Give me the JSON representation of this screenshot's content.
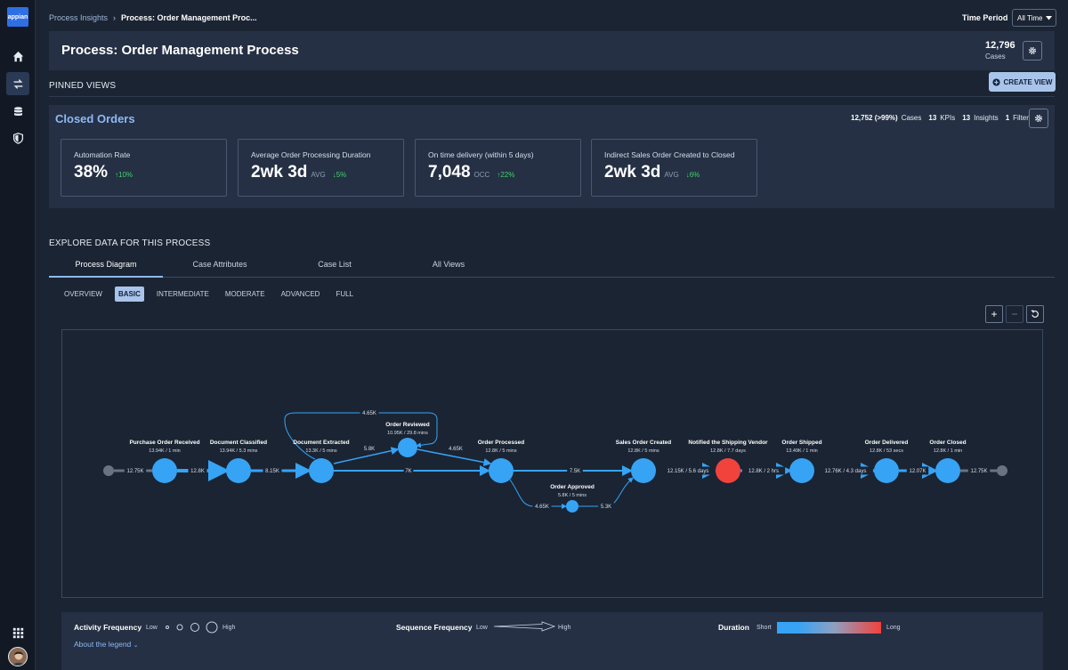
{
  "app": {
    "logo_text": "appian"
  },
  "breadcrumb": {
    "parent": "Process Insights",
    "separator": "›",
    "current": "Process: Order Management Proc..."
  },
  "time_period": {
    "label": "Time Period",
    "value": "All Time"
  },
  "header": {
    "title": "Process: Order Management Process",
    "cases_count": "12,796",
    "cases_label": "Cases"
  },
  "pinned": {
    "title": "PINNED VIEWS",
    "create_label": "CREATE VIEW"
  },
  "closed_orders": {
    "title": "Closed Orders",
    "stats": {
      "cases_value": "12,752 (>99%)",
      "cases_label": "Cases",
      "kpis_value": "13",
      "kpis_label": "KPIs",
      "insights_value": "13",
      "insights_label": "Insights",
      "filters_value": "1",
      "filters_label": "Filters"
    },
    "kpis": [
      {
        "label": "Automation Rate",
        "value": "38%",
        "unit": "",
        "delta": "↑10%"
      },
      {
        "label": "Average Order Processing Duration",
        "value": "2wk 3d",
        "unit": "AVG",
        "delta": "↓5%"
      },
      {
        "label": "On time delivery (within 5 days)",
        "value": "7,048",
        "unit": "OCC",
        "delta": "↑22%"
      },
      {
        "label": "Indirect Sales Order Created to Closed",
        "value": "2wk 3d",
        "unit": "AVG",
        "delta": "↓6%"
      }
    ]
  },
  "explore": {
    "title": "EXPLORE DATA FOR THIS PROCESS",
    "tabs": [
      "Process Diagram",
      "Case Attributes",
      "Case List",
      "All Views"
    ],
    "levels": [
      "OVERVIEW",
      "BASIC",
      "INTERMEDIATE",
      "MODERATE",
      "ADVANCED",
      "FULL"
    ],
    "zoom": {
      "in": "+",
      "out": "−"
    }
  },
  "diagram": {
    "nodes": [
      {
        "id": "start",
        "name": "",
        "stats": "",
        "color": "#6b7280"
      },
      {
        "id": "por",
        "name": "Purchase Order Received",
        "stats": "13.94K / 1 min",
        "color": "#36a3f5"
      },
      {
        "id": "dc",
        "name": "Document Classified",
        "stats": "13.94K / 5.3 mins",
        "color": "#36a3f5"
      },
      {
        "id": "de",
        "name": "Document Extracted",
        "stats": "13.3K / 5 mins",
        "color": "#36a3f5"
      },
      {
        "id": "or",
        "name": "Order Reviewed",
        "stats": "10.95K / 29.8 mins",
        "color": "#36a3f5"
      },
      {
        "id": "op",
        "name": "Order Processed",
        "stats": "12.8K / 5 mins",
        "color": "#36a3f5"
      },
      {
        "id": "oa",
        "name": "Order Approved",
        "stats": "5.8K / 5 mins",
        "color": "#36a3f5"
      },
      {
        "id": "soc",
        "name": "Sales Order Created",
        "stats": "12.8K / 5 mins",
        "color": "#36a3f5"
      },
      {
        "id": "nsv",
        "name": "Notified the Shipping Vendor",
        "stats": "12.8K / 7.7 days",
        "color": "#f2423c"
      },
      {
        "id": "os",
        "name": "Order Shipped",
        "stats": "13.49K / 1 min",
        "color": "#36a3f5"
      },
      {
        "id": "od",
        "name": "Order Delivered",
        "stats": "12.8K / 53 secs",
        "color": "#36a3f5"
      },
      {
        "id": "oc",
        "name": "Order Closed",
        "stats": "12.8K / 1 min",
        "color": "#36a3f5"
      },
      {
        "id": "end",
        "name": "",
        "stats": "",
        "color": "#6b7280"
      }
    ],
    "edges": [
      {
        "from": "start",
        "to": "por",
        "label": "12.75K"
      },
      {
        "from": "por",
        "to": "dc",
        "label": "12.8K"
      },
      {
        "from": "dc",
        "to": "de",
        "label": "8.15K"
      },
      {
        "from": "de",
        "to": "or",
        "label": "5.8K"
      },
      {
        "from": "de",
        "to": "op",
        "label": "7K"
      },
      {
        "from": "de",
        "to": "op",
        "label": "4.65K",
        "via": "top-loop"
      },
      {
        "from": "or",
        "to": "op",
        "label": "4.65K"
      },
      {
        "from": "op",
        "to": "soc",
        "label": "7.5K"
      },
      {
        "from": "op",
        "to": "oa",
        "label": "4.65K"
      },
      {
        "from": "oa",
        "to": "soc",
        "label": "5.3K"
      },
      {
        "from": "soc",
        "to": "nsv",
        "label": "12.15K / 5.6 days"
      },
      {
        "from": "nsv",
        "to": "os",
        "label": "12.8K / 2 hrs"
      },
      {
        "from": "os",
        "to": "od",
        "label": "12.76K / 4.3 days"
      },
      {
        "from": "od",
        "to": "oc",
        "label": "12.07K"
      },
      {
        "from": "oc",
        "to": "end",
        "label": "12.75K"
      }
    ]
  },
  "legend": {
    "activity": {
      "title": "Activity Frequency",
      "low": "Low",
      "high": "High"
    },
    "sequence": {
      "title": "Sequence Frequency",
      "low": "Low",
      "high": "High"
    },
    "duration": {
      "title": "Duration",
      "short": "Short",
      "long": "Long",
      "color_short": "#36a3f5",
      "color_long": "#f2423c"
    },
    "about": "About the legend"
  },
  "colors": {
    "accent": "#8db9f5",
    "positive": "#3fd36b",
    "node": "#36a3f5",
    "slow": "#f2423c"
  }
}
